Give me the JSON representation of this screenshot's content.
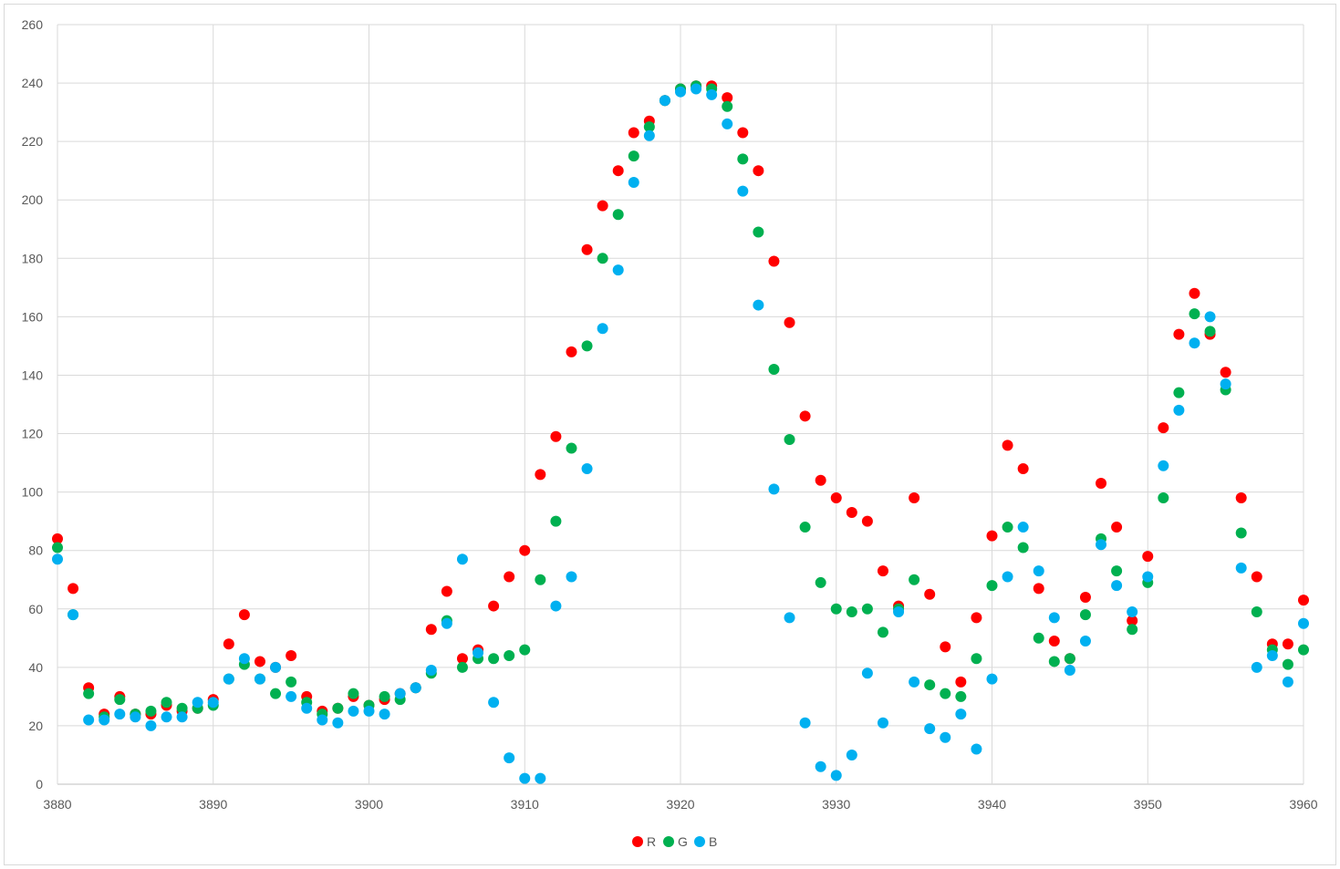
{
  "chart_data": {
    "type": "scatter",
    "title": "",
    "xlabel": "",
    "ylabel": "",
    "xlim": [
      3880,
      3960
    ],
    "ylim": [
      0,
      260
    ],
    "xticks": [
      3880,
      3890,
      3900,
      3910,
      3920,
      3930,
      3940,
      3950,
      3960
    ],
    "yticks": [
      0,
      20,
      40,
      60,
      80,
      100,
      120,
      140,
      160,
      180,
      200,
      220,
      240,
      260
    ],
    "grid": true,
    "legend_position": "bottom-center",
    "x": [
      3880,
      3881,
      3882,
      3883,
      3884,
      3885,
      3886,
      3887,
      3888,
      3889,
      3890,
      3891,
      3892,
      3893,
      3894,
      3895,
      3896,
      3897,
      3898,
      3899,
      3900,
      3901,
      3902,
      3903,
      3904,
      3905,
      3906,
      3907,
      3908,
      3909,
      3910,
      3911,
      3912,
      3913,
      3914,
      3915,
      3916,
      3917,
      3918,
      3919,
      3920,
      3921,
      3922,
      3923,
      3924,
      3925,
      3926,
      3927,
      3928,
      3929,
      3930,
      3931,
      3932,
      3933,
      3934,
      3935,
      3936,
      3937,
      3938,
      3939,
      3940,
      3941,
      3942,
      3943,
      3944,
      3945,
      3946,
      3947,
      3948,
      3949,
      3950,
      3951,
      3952,
      3953,
      3954,
      3955,
      3956,
      3957,
      3958,
      3959,
      3960
    ],
    "series": [
      {
        "name": "R",
        "color": "#ff0000",
        "values": [
          84,
          67,
          33,
          24,
          30,
          24,
          24,
          27,
          25,
          26,
          29,
          48,
          58,
          42,
          40,
          44,
          30,
          25,
          26,
          30,
          27,
          29,
          31,
          33,
          53,
          66,
          43,
          46,
          61,
          71,
          80,
          106,
          119,
          148,
          183,
          198,
          210,
          223,
          227,
          234,
          238,
          239,
          239,
          235,
          223,
          210,
          179,
          158,
          126,
          104,
          98,
          93,
          90,
          73,
          61,
          98,
          65,
          47,
          35,
          57,
          85,
          116,
          108,
          67,
          49,
          43,
          64,
          103,
          88,
          56,
          78,
          122,
          154,
          168,
          154,
          141,
          98,
          71,
          48,
          48,
          63
        ]
      },
      {
        "name": "G",
        "color": "#00b050",
        "values": [
          81,
          58,
          31,
          23,
          29,
          24,
          25,
          28,
          26,
          26,
          27,
          36,
          41,
          36,
          31,
          35,
          28,
          24,
          26,
          31,
          27,
          30,
          29,
          33,
          38,
          56,
          40,
          43,
          43,
          44,
          46,
          70,
          90,
          115,
          150,
          180,
          195,
          215,
          225,
          234,
          238,
          239,
          238,
          232,
          214,
          189,
          142,
          118,
          88,
          69,
          60,
          59,
          60,
          52,
          60,
          70,
          34,
          31,
          30,
          43,
          68,
          88,
          81,
          50,
          42,
          43,
          58,
          84,
          73,
          53,
          69,
          98,
          134,
          161,
          155,
          135,
          86,
          59,
          46,
          41,
          46
        ]
      },
      {
        "name": "B",
        "color": "#00b0f0",
        "values": [
          77,
          58,
          22,
          22,
          24,
          23,
          20,
          23,
          23,
          28,
          28,
          36,
          43,
          36,
          40,
          30,
          26,
          22,
          21,
          25,
          25,
          24,
          31,
          33,
          39,
          55,
          77,
          45,
          28,
          9,
          2,
          2,
          61,
          71,
          108,
          156,
          176,
          206,
          222,
          234,
          237,
          238,
          236,
          226,
          203,
          164,
          101,
          57,
          21,
          6,
          3,
          10,
          38,
          21,
          59,
          35,
          19,
          16,
          24,
          12,
          36,
          71,
          88,
          73,
          57,
          39,
          49,
          82,
          68,
          59,
          71,
          109,
          128,
          151,
          160,
          137,
          74,
          40,
          44,
          35,
          55
        ]
      }
    ]
  }
}
